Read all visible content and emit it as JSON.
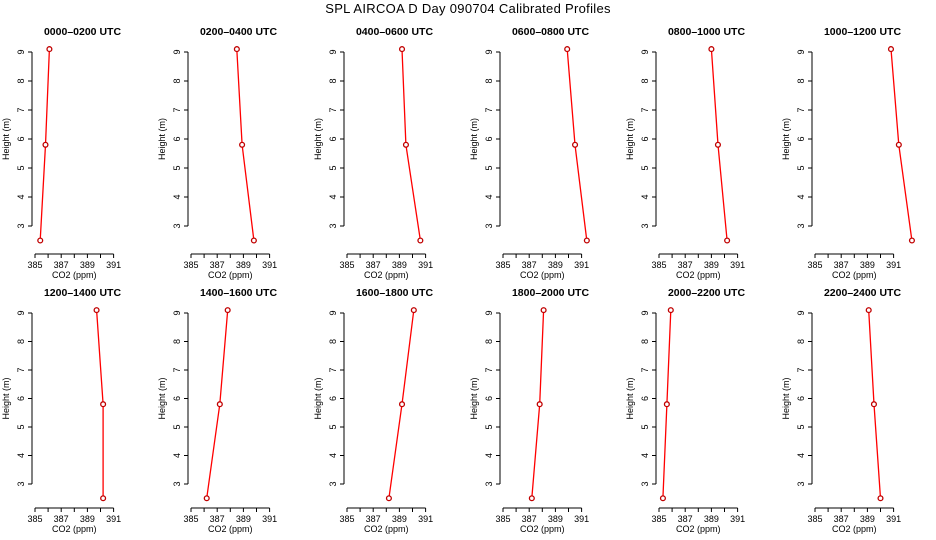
{
  "figure": {
    "title": "SPL AIRCOA D  Day 090704  Calibrated Profiles"
  },
  "colors": {
    "line": "#ff0000",
    "marker": "#c00000",
    "axis": "#000000"
  },
  "chart_data": [
    {
      "type": "line",
      "title": "0000–0200 UTC",
      "xlabel": "CO2 (ppm)",
      "ylabel": "Height (m)",
      "x_ticks": [
        "385",
        "387",
        "389",
        "391"
      ],
      "y_ticks": [
        "3",
        "4",
        "5",
        "6",
        "7",
        "8",
        "9"
      ],
      "xlim": [
        385,
        392.5
      ],
      "ylim": [
        2.3,
        9.3
      ],
      "points": [
        {
          "x": 386.1,
          "y": 9.1
        },
        {
          "x": 385.8,
          "y": 5.8
        },
        {
          "x": 385.4,
          "y": 2.5
        }
      ]
    },
    {
      "type": "line",
      "title": "0200–0400 UTC",
      "xlabel": "CO2 (ppm)",
      "ylabel": "Height (m)",
      "x_ticks": [
        "385",
        "387",
        "389",
        "391"
      ],
      "y_ticks": [
        "3",
        "4",
        "5",
        "6",
        "7",
        "8",
        "9"
      ],
      "xlim": [
        385,
        392.5
      ],
      "ylim": [
        2.3,
        9.3
      ],
      "points": [
        {
          "x": 388.5,
          "y": 9.1
        },
        {
          "x": 388.9,
          "y": 5.8
        },
        {
          "x": 389.8,
          "y": 2.5
        }
      ]
    },
    {
      "type": "line",
      "title": "0400–0600 UTC",
      "xlabel": "CO2 (ppm)",
      "ylabel": "Height (m)",
      "x_ticks": [
        "385",
        "387",
        "389",
        "391"
      ],
      "y_ticks": [
        "3",
        "4",
        "5",
        "6",
        "7",
        "8",
        "9"
      ],
      "xlim": [
        385,
        392.5
      ],
      "ylim": [
        2.3,
        9.3
      ],
      "points": [
        {
          "x": 389.2,
          "y": 9.1
        },
        {
          "x": 389.5,
          "y": 5.8
        },
        {
          "x": 390.6,
          "y": 2.5
        }
      ]
    },
    {
      "type": "line",
      "title": "0600–0800 UTC",
      "xlabel": "CO2 (ppm)",
      "ylabel": "Height (m)",
      "x_ticks": [
        "385",
        "387",
        "389",
        "391"
      ],
      "y_ticks": [
        "3",
        "4",
        "5",
        "6",
        "7",
        "8",
        "9"
      ],
      "xlim": [
        385,
        392.5
      ],
      "ylim": [
        2.3,
        9.3
      ],
      "points": [
        {
          "x": 389.9,
          "y": 9.1
        },
        {
          "x": 390.5,
          "y": 5.8
        },
        {
          "x": 391.4,
          "y": 2.5
        }
      ]
    },
    {
      "type": "line",
      "title": "0800–1000 UTC",
      "xlabel": "CO2 (ppm)",
      "ylabel": "Height (m)",
      "x_ticks": [
        "385",
        "387",
        "389",
        "391"
      ],
      "y_ticks": [
        "3",
        "4",
        "5",
        "6",
        "7",
        "8",
        "9"
      ],
      "xlim": [
        385,
        392.5
      ],
      "ylim": [
        2.3,
        9.3
      ],
      "points": [
        {
          "x": 389.0,
          "y": 9.1
        },
        {
          "x": 389.5,
          "y": 5.8
        },
        {
          "x": 390.2,
          "y": 2.5
        }
      ]
    },
    {
      "type": "line",
      "title": "1000–1200 UTC",
      "xlabel": "CO2 (ppm)",
      "ylabel": "Height (m)",
      "x_ticks": [
        "385",
        "387",
        "389",
        "391"
      ],
      "y_ticks": [
        "3",
        "4",
        "5",
        "6",
        "7",
        "8",
        "9"
      ],
      "xlim": [
        385,
        392.5
      ],
      "ylim": [
        2.3,
        9.3
      ],
      "points": [
        {
          "x": 390.8,
          "y": 9.1
        },
        {
          "x": 391.4,
          "y": 5.8
        },
        {
          "x": 392.4,
          "y": 2.5
        }
      ]
    },
    {
      "type": "line",
      "title": "1200–1400 UTC",
      "xlabel": "CO2 (ppm)",
      "ylabel": "Height (m)",
      "x_ticks": [
        "385",
        "387",
        "389",
        "391"
      ],
      "y_ticks": [
        "3",
        "4",
        "5",
        "6",
        "7",
        "8",
        "9"
      ],
      "xlim": [
        385,
        392.5
      ],
      "ylim": [
        2.3,
        9.3
      ],
      "points": [
        {
          "x": 389.7,
          "y": 9.1
        },
        {
          "x": 390.2,
          "y": 5.8
        },
        {
          "x": 390.2,
          "y": 2.5
        }
      ]
    },
    {
      "type": "line",
      "title": "1400–1600 UTC",
      "xlabel": "CO2 (ppm)",
      "ylabel": "Height (m)",
      "x_ticks": [
        "385",
        "387",
        "389",
        "391"
      ],
      "y_ticks": [
        "3",
        "4",
        "5",
        "6",
        "7",
        "8",
        "9"
      ],
      "xlim": [
        385,
        392.5
      ],
      "ylim": [
        2.3,
        9.3
      ],
      "points": [
        {
          "x": 387.8,
          "y": 9.1
        },
        {
          "x": 387.2,
          "y": 5.8
        },
        {
          "x": 386.2,
          "y": 2.5
        }
      ]
    },
    {
      "type": "line",
      "title": "1600–1800 UTC",
      "xlabel": "CO2 (ppm)",
      "ylabel": "Height (m)",
      "x_ticks": [
        "385",
        "387",
        "389",
        "391"
      ],
      "y_ticks": [
        "3",
        "4",
        "5",
        "6",
        "7",
        "8",
        "9"
      ],
      "xlim": [
        385,
        392.5
      ],
      "ylim": [
        2.3,
        9.3
      ],
      "points": [
        {
          "x": 390.1,
          "y": 9.1
        },
        {
          "x": 389.2,
          "y": 5.8
        },
        {
          "x": 388.2,
          "y": 2.5
        }
      ]
    },
    {
      "type": "line",
      "title": "1800–2000 UTC",
      "xlabel": "CO2 (ppm)",
      "ylabel": "Height (m)",
      "x_ticks": [
        "385",
        "387",
        "389",
        "391"
      ],
      "y_ticks": [
        "3",
        "4",
        "5",
        "6",
        "7",
        "8",
        "9"
      ],
      "xlim": [
        385,
        392.5
      ],
      "ylim": [
        2.3,
        9.3
      ],
      "points": [
        {
          "x": 388.1,
          "y": 9.1
        },
        {
          "x": 387.8,
          "y": 5.8
        },
        {
          "x": 387.2,
          "y": 2.5
        }
      ]
    },
    {
      "type": "line",
      "title": "2000–2200 UTC",
      "xlabel": "CO2 (ppm)",
      "ylabel": "Height (m)",
      "x_ticks": [
        "385",
        "387",
        "389",
        "391"
      ],
      "y_ticks": [
        "3",
        "4",
        "5",
        "6",
        "7",
        "8",
        "9"
      ],
      "xlim": [
        385,
        392.5
      ],
      "ylim": [
        2.3,
        9.3
      ],
      "points": [
        {
          "x": 385.9,
          "y": 9.1
        },
        {
          "x": 385.6,
          "y": 5.8
        },
        {
          "x": 385.3,
          "y": 2.5
        }
      ]
    },
    {
      "type": "line",
      "title": "2200–2400 UTC",
      "xlabel": "CO2 (ppm)",
      "ylabel": "Height (m)",
      "x_ticks": [
        "385",
        "387",
        "389",
        "391"
      ],
      "y_ticks": [
        "3",
        "4",
        "5",
        "6",
        "7",
        "8",
        "9"
      ],
      "xlim": [
        385,
        392.5
      ],
      "ylim": [
        2.3,
        9.3
      ],
      "points": [
        {
          "x": 389.1,
          "y": 9.1
        },
        {
          "x": 389.5,
          "y": 5.8
        },
        {
          "x": 390.0,
          "y": 2.5
        }
      ]
    }
  ]
}
